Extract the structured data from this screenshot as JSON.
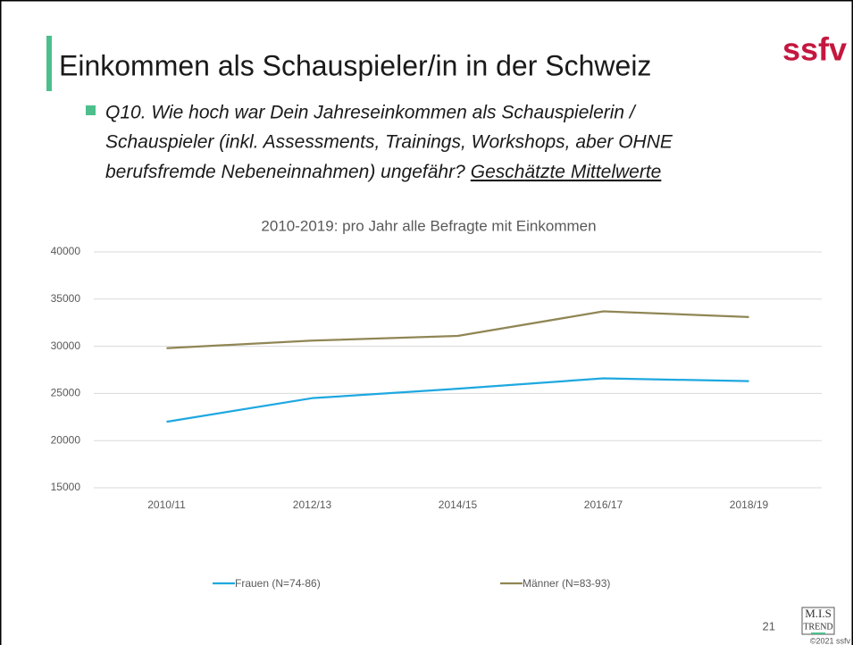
{
  "slide": {
    "title": "Einkommen als Schauspieler/in in der Schweiz",
    "brand": "ssfv",
    "question": [
      "Q10. Wie hoch war Dein Jahreseinkommen als Schauspielerin /",
      "Schauspieler (inkl. Assessments, Trainings, Workshops, aber OHNE",
      "berufsfremde Nebeneinnahmen) ungefähr?"
    ],
    "question_emphasis": "Geschätzte Mittelwerte",
    "page_number": "21",
    "logo": [
      "M.I.S",
      "TREND"
    ],
    "copyright": "©2021 ssfv"
  },
  "chart_data": {
    "type": "line",
    "title": "2010-2019: pro Jahr alle Befragte mit Einkommen",
    "categories": [
      "2010/11",
      "2012/13",
      "2014/15",
      "2016/17",
      "2018/19"
    ],
    "series": [
      {
        "name": "Frauen (N=74-86)",
        "color": "#1ea8e0",
        "values": [
          22000,
          24500,
          25500,
          26600,
          26300
        ]
      },
      {
        "name": "Männer (N=83-93)",
        "color": "#908655",
        "values": [
          29800,
          30600,
          31100,
          33700,
          33100
        ]
      }
    ],
    "ylim": [
      15000,
      40000
    ],
    "yticks": [
      15000,
      20000,
      25000,
      30000,
      35000,
      40000
    ],
    "grid": true,
    "legend": "bottom"
  }
}
